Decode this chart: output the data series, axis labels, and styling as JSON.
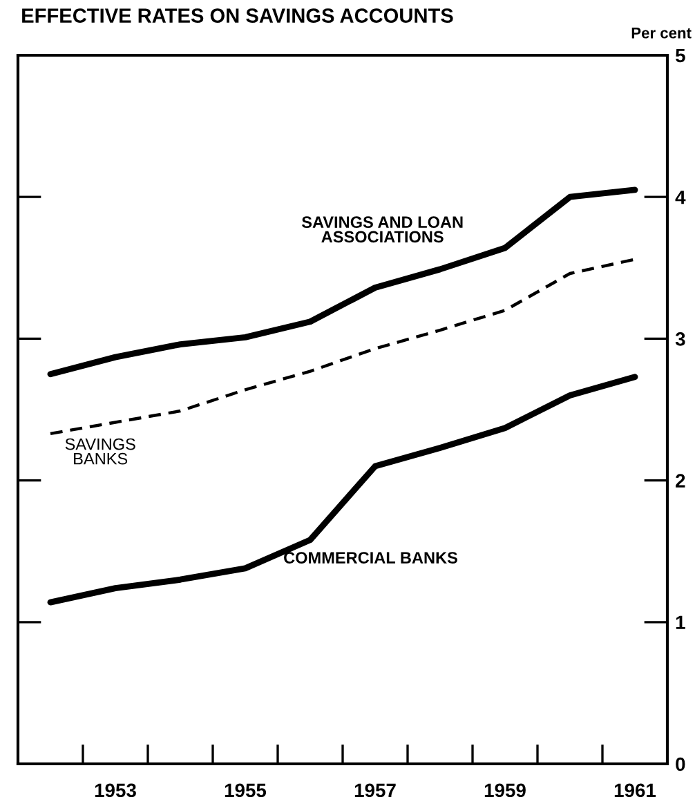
{
  "chart_data": {
    "type": "line",
    "title": "EFFECTIVE RATES ON SAVINGS ACCOUNTS",
    "ylabel": "Per cent",
    "x": [
      1952,
      1953,
      1954,
      1955,
      1956,
      1957,
      1958,
      1959,
      1960,
      1961
    ],
    "series": [
      {
        "name": "SAVINGS AND LOAN ASSOCIATIONS",
        "color": "#000000",
        "line_style": "solid",
        "values": [
          2.75,
          2.87,
          2.96,
          3.01,
          3.12,
          3.36,
          3.49,
          3.64,
          4.0,
          4.05
        ]
      },
      {
        "name": "SAVINGS BANKS",
        "color": "#000000",
        "line_style": "dashed",
        "values": [
          2.33,
          2.41,
          2.49,
          2.64,
          2.77,
          2.93,
          3.06,
          3.2,
          3.46,
          3.56
        ]
      },
      {
        "name": "COMMERCIAL BANKS",
        "color": "#000000",
        "line_style": "solid",
        "values": [
          1.14,
          1.24,
          1.3,
          1.38,
          1.58,
          2.1,
          2.23,
          2.37,
          2.6,
          2.73
        ]
      }
    ],
    "xlim": [
      1951.5,
      1961.5
    ],
    "xticks": [
      {
        "value": 1952.5,
        "label": null
      },
      {
        "value": 1953,
        "label": "1953"
      },
      {
        "value": 1953.5,
        "label": null
      },
      {
        "value": 1954.5,
        "label": null
      },
      {
        "value": 1955,
        "label": "1955"
      },
      {
        "value": 1955.5,
        "label": null
      },
      {
        "value": 1956.5,
        "label": null
      },
      {
        "value": 1957,
        "label": "1957"
      },
      {
        "value": 1957.5,
        "label": null
      },
      {
        "value": 1958.5,
        "label": null
      },
      {
        "value": 1959,
        "label": "1959"
      },
      {
        "value": 1959.5,
        "label": null
      },
      {
        "value": 1960.5,
        "label": null
      },
      {
        "value": 1961,
        "label": "1961"
      }
    ],
    "ylim": [
      0,
      5
    ],
    "yticks": [
      0,
      1,
      2,
      3,
      4,
      5
    ],
    "grid": false,
    "legend": false,
    "marker": "none"
  }
}
